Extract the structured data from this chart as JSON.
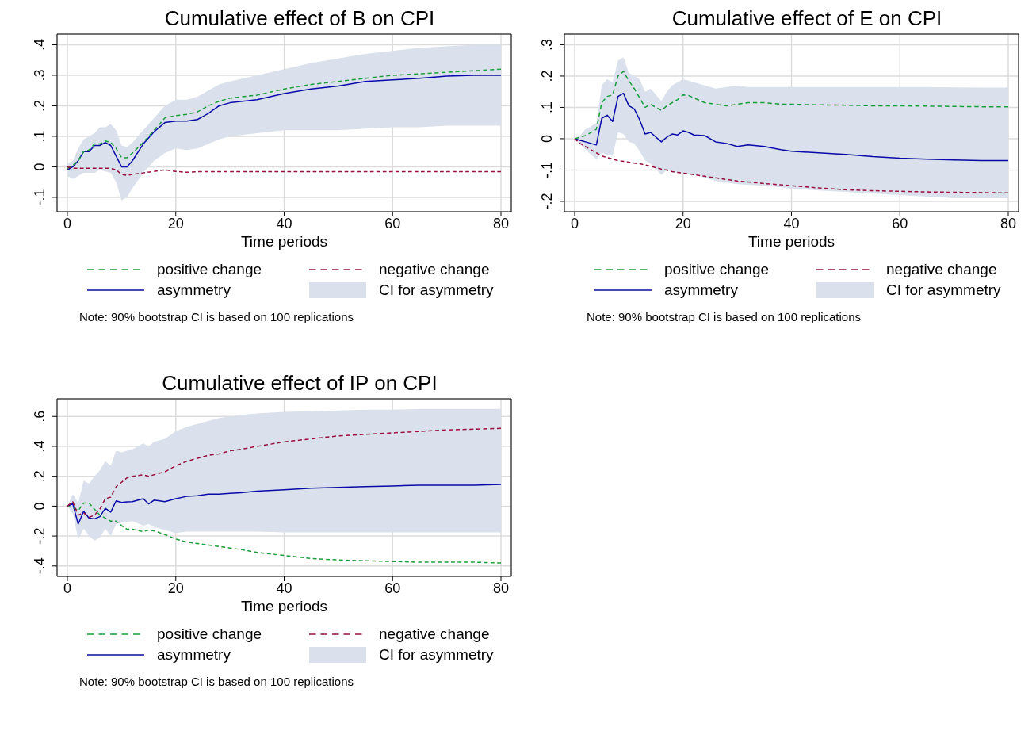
{
  "chart_data": [
    {
      "type": "line",
      "title": "Cumulative effect of B on CPI",
      "xlabel": "Time periods",
      "grid": true,
      "legend": "bottom",
      "annotations": [
        "Note: 90% bootstrap CI is based on 100 replications"
      ],
      "x": [
        0,
        1,
        2,
        3,
        4,
        5,
        6,
        7,
        8,
        9,
        10,
        11,
        12,
        14,
        16,
        18,
        20,
        22,
        24,
        26,
        28,
        30,
        35,
        40,
        45,
        50,
        55,
        60,
        65,
        70,
        75,
        80
      ],
      "xlim": [
        -1.9,
        81.9
      ],
      "xticks": [
        0,
        20,
        40,
        60,
        80
      ],
      "ylim": [
        -0.147,
        0.435
      ],
      "yticks": [
        {
          "value": -0.1,
          "label": "-.1"
        },
        {
          "value": 0,
          "label": "0"
        },
        {
          "value": 0.1,
          "label": ".1"
        },
        {
          "value": 0.2,
          "label": ".2"
        },
        {
          "value": 0.3,
          "label": ".3"
        },
        {
          "value": 0.4,
          "label": ".4"
        }
      ],
      "series": [
        {
          "name": "positive change",
          "type": "line",
          "line_style": "dashed",
          "color": "#1a9e3a",
          "values": [
            -0.005,
            0.005,
            0.02,
            0.05,
            0.055,
            0.075,
            0.075,
            0.085,
            0.08,
            0.06,
            0.03,
            0.03,
            0.045,
            0.08,
            0.12,
            0.16,
            0.168,
            0.172,
            0.18,
            0.2,
            0.215,
            0.225,
            0.235,
            0.255,
            0.27,
            0.28,
            0.29,
            0.3,
            0.305,
            0.31,
            0.315,
            0.32
          ]
        },
        {
          "name": "negative change",
          "type": "line",
          "line_style": "dashed",
          "color": "#99103f",
          "values": [
            0,
            -0.005,
            -0.005,
            -0.005,
            -0.005,
            -0.005,
            -0.005,
            -0.005,
            -0.005,
            -0.01,
            -0.025,
            -0.028,
            -0.025,
            -0.02,
            -0.015,
            -0.01,
            -0.015,
            -0.018,
            -0.016,
            -0.016,
            -0.016,
            -0.016,
            -0.016,
            -0.016,
            -0.016,
            -0.016,
            -0.016,
            -0.016,
            -0.016,
            -0.016,
            -0.016,
            -0.016
          ]
        },
        {
          "name": "asymmetry",
          "type": "line",
          "line_style": "solid",
          "color": "#0a0aa8",
          "values": [
            -0.01,
            0,
            0.02,
            0.05,
            0.05,
            0.07,
            0.07,
            0.08,
            0.07,
            0.035,
            0,
            0,
            0.02,
            0.075,
            0.115,
            0.145,
            0.15,
            0.15,
            0.155,
            0.175,
            0.2,
            0.21,
            0.22,
            0.24,
            0.255,
            0.265,
            0.28,
            0.285,
            0.29,
            0.297,
            0.3,
            0.3
          ],
          "lower": [
            -0.03,
            -0.04,
            -0.03,
            -0.02,
            -0.02,
            -0.02,
            -0.01,
            -0.015,
            -0.02,
            -0.05,
            -0.11,
            -0.1,
            -0.07,
            -0.02,
            0.02,
            0.045,
            0.06,
            0.055,
            0.06,
            0.075,
            0.09,
            0.1,
            0.11,
            0.12,
            0.12,
            0.12,
            0.125,
            0.13,
            0.13,
            0.135,
            0.135,
            0.135
          ],
          "upper": [
            0.01,
            0.02,
            0.06,
            0.09,
            0.1,
            0.11,
            0.13,
            0.13,
            0.14,
            0.12,
            0.07,
            0.065,
            0.08,
            0.12,
            0.16,
            0.2,
            0.22,
            0.22,
            0.23,
            0.25,
            0.27,
            0.28,
            0.3,
            0.32,
            0.34,
            0.355,
            0.37,
            0.38,
            0.39,
            0.395,
            0.4,
            0.4
          ]
        },
        {
          "name": "CI for asymmetry",
          "type": "area",
          "color": "#dae1ec",
          "values": [
            null,
            null,
            null,
            null,
            null,
            null,
            null,
            null,
            null,
            null,
            null,
            null,
            null,
            null,
            null,
            null,
            null,
            null,
            null,
            null,
            null,
            null,
            null,
            null,
            null,
            null,
            null,
            null,
            null,
            null,
            null,
            null
          ]
        }
      ]
    },
    {
      "type": "line",
      "title": "Cumulative effect of E on CPI",
      "xlabel": "Time periods",
      "grid": true,
      "legend": "bottom",
      "annotations": [
        "Note: 90% bootstrap CI is based on 100 replications"
      ],
      "x": [
        0,
        1,
        2,
        3,
        4,
        5,
        6,
        7,
        8,
        9,
        10,
        11,
        12,
        13,
        14,
        16,
        17,
        18,
        19,
        20,
        21,
        22,
        24,
        26,
        28,
        30,
        32,
        35,
        38,
        40,
        45,
        50,
        55,
        60,
        65,
        70,
        75,
        80
      ],
      "xlim": [
        -1.9,
        81.9
      ],
      "xticks": [
        0,
        20,
        40,
        60,
        80
      ],
      "ylim": [
        -0.233,
        0.334
      ],
      "yticks": [
        {
          "value": -0.2,
          "label": "-.2"
        },
        {
          "value": -0.1,
          "label": "-.1"
        },
        {
          "value": 0,
          "label": "0"
        },
        {
          "value": 0.1,
          "label": ".1"
        },
        {
          "value": 0.2,
          "label": ".2"
        },
        {
          "value": 0.3,
          "label": ".3"
        }
      ],
      "series": [
        {
          "name": "positive change",
          "type": "line",
          "line_style": "dashed",
          "color": "#1a9e3a",
          "values": [
            0,
            0.005,
            0.01,
            0.02,
            0.03,
            0.115,
            0.135,
            0.14,
            0.2,
            0.215,
            0.185,
            0.16,
            0.13,
            0.1,
            0.11,
            0.09,
            0.105,
            0.115,
            0.125,
            0.14,
            0.138,
            0.13,
            0.115,
            0.11,
            0.105,
            0.11,
            0.115,
            0.115,
            0.11,
            0.11,
            0.108,
            0.107,
            0.105,
            0.105,
            0.104,
            0.103,
            0.102,
            0.102
          ]
        },
        {
          "name": "negative change",
          "type": "line",
          "line_style": "dashed",
          "color": "#99103f",
          "values": [
            0,
            -0.015,
            -0.025,
            -0.035,
            -0.045,
            -0.055,
            -0.06,
            -0.065,
            -0.07,
            -0.072,
            -0.075,
            -0.078,
            -0.08,
            -0.084,
            -0.088,
            -0.097,
            -0.1,
            -0.105,
            -0.108,
            -0.11,
            -0.112,
            -0.115,
            -0.12,
            -0.125,
            -0.13,
            -0.135,
            -0.138,
            -0.143,
            -0.147,
            -0.15,
            -0.157,
            -0.163,
            -0.166,
            -0.168,
            -0.17,
            -0.171,
            -0.172,
            -0.173
          ]
        },
        {
          "name": "asymmetry",
          "type": "line",
          "line_style": "solid",
          "color": "#0a0aa8",
          "values": [
            0,
            -0.005,
            -0.01,
            -0.015,
            -0.02,
            0.065,
            0.075,
            0.055,
            0.135,
            0.145,
            0.105,
            0.095,
            0.06,
            0.015,
            0.02,
            -0.01,
            0.005,
            0.015,
            0.012,
            0.025,
            0.02,
            0.012,
            0.01,
            -0.01,
            -0.015,
            -0.025,
            -0.02,
            -0.025,
            -0.035,
            -0.04,
            -0.045,
            -0.05,
            -0.057,
            -0.062,
            -0.065,
            -0.068,
            -0.07,
            -0.07
          ],
          "lower": [
            0,
            -0.015,
            -0.035,
            -0.05,
            -0.065,
            -0.045,
            -0.05,
            -0.055,
            0.02,
            0.015,
            -0.01,
            -0.015,
            -0.04,
            -0.07,
            -0.08,
            -0.115,
            -0.1,
            -0.105,
            -0.108,
            -0.11,
            -0.112,
            -0.115,
            -0.125,
            -0.135,
            -0.14,
            -0.145,
            -0.147,
            -0.15,
            -0.155,
            -0.16,
            -0.165,
            -0.17,
            -0.175,
            -0.18,
            -0.185,
            -0.19,
            -0.19,
            -0.19
          ],
          "upper": [
            0,
            0.01,
            0.03,
            0.04,
            0.05,
            0.17,
            0.19,
            0.18,
            0.25,
            0.26,
            0.21,
            0.2,
            0.19,
            0.15,
            0.16,
            0.12,
            0.15,
            0.17,
            0.18,
            0.19,
            0.185,
            0.18,
            0.17,
            0.16,
            0.165,
            0.17,
            0.165,
            0.165,
            0.165,
            0.165,
            0.165,
            0.165,
            0.165,
            0.165,
            0.165,
            0.164,
            0.163,
            0.163
          ]
        },
        {
          "name": "CI for asymmetry",
          "type": "area",
          "color": "#dae1ec",
          "values": [
            null,
            null,
            null,
            null,
            null,
            null,
            null,
            null,
            null,
            null,
            null,
            null,
            null,
            null,
            null,
            null,
            null,
            null,
            null,
            null,
            null,
            null,
            null,
            null,
            null,
            null,
            null,
            null,
            null,
            null,
            null,
            null,
            null,
            null,
            null,
            null,
            null,
            null
          ]
        }
      ]
    },
    {
      "type": "line",
      "title": "Cumulative effect of IP on CPI",
      "xlabel": "Time periods",
      "grid": true,
      "legend": "bottom",
      "annotations": [
        "Note: 90% bootstrap CI is based on 100 replications"
      ],
      "x": [
        0,
        1,
        2,
        3,
        4,
        5,
        6,
        7,
        8,
        9,
        10,
        11,
        12,
        14,
        15,
        16,
        18,
        20,
        22,
        24,
        26,
        28,
        30,
        32,
        35,
        40,
        45,
        50,
        55,
        60,
        65,
        70,
        75,
        80
      ],
      "xlim": [
        -1.9,
        81.9
      ],
      "xticks": [
        0,
        20,
        40,
        60,
        80
      ],
      "ylim": [
        -0.47,
        0.718
      ],
      "yticks": [
        {
          "value": -0.4,
          "label": "-.4"
        },
        {
          "value": -0.2,
          "label": "-.2"
        },
        {
          "value": 0,
          "label": "0"
        },
        {
          "value": 0.2,
          "label": ".2"
        },
        {
          "value": 0.4,
          "label": ".4"
        },
        {
          "value": 0.6,
          "label": ".6"
        }
      ],
      "series": [
        {
          "name": "positive change",
          "type": "line",
          "line_style": "dashed",
          "color": "#1a9e3a",
          "values": [
            0,
            -0.01,
            -0.03,
            0.02,
            0.02,
            -0.02,
            -0.06,
            -0.08,
            -0.1,
            -0.1,
            -0.13,
            -0.155,
            -0.155,
            -0.17,
            -0.16,
            -0.165,
            -0.19,
            -0.22,
            -0.24,
            -0.25,
            -0.26,
            -0.27,
            -0.28,
            -0.29,
            -0.31,
            -0.33,
            -0.35,
            -0.36,
            -0.365,
            -0.37,
            -0.375,
            -0.375,
            -0.375,
            -0.38
          ]
        },
        {
          "name": "negative change",
          "type": "line",
          "line_style": "dashed",
          "color": "#99103f",
          "values": [
            0,
            0.03,
            -0.06,
            -0.045,
            -0.075,
            -0.06,
            -0.02,
            0.05,
            0.06,
            0.13,
            0.16,
            0.19,
            0.2,
            0.21,
            0.2,
            0.21,
            0.23,
            0.27,
            0.3,
            0.32,
            0.34,
            0.35,
            0.37,
            0.38,
            0.4,
            0.43,
            0.45,
            0.47,
            0.48,
            0.49,
            0.5,
            0.51,
            0.515,
            0.52
          ]
        },
        {
          "name": "asymmetry",
          "type": "line",
          "line_style": "solid",
          "color": "#0a0aa8",
          "values": [
            0,
            0.015,
            -0.12,
            -0.035,
            -0.08,
            -0.085,
            -0.07,
            -0.015,
            -0.04,
            0.035,
            0.025,
            0.028,
            0.03,
            0.05,
            0.015,
            0.04,
            0.03,
            0.05,
            0.065,
            0.07,
            0.08,
            0.08,
            0.085,
            0.09,
            0.1,
            0.11,
            0.12,
            0.125,
            0.13,
            0.135,
            0.14,
            0.14,
            0.14,
            0.145
          ],
          "lower": [
            0,
            -0.05,
            -0.22,
            -0.15,
            -0.2,
            -0.23,
            -0.21,
            -0.15,
            -0.2,
            -0.12,
            -0.11,
            -0.105,
            -0.1,
            -0.13,
            -0.12,
            -0.14,
            -0.16,
            -0.18,
            -0.17,
            -0.17,
            -0.17,
            -0.17,
            -0.17,
            -0.17,
            -0.17,
            -0.175,
            -0.175,
            -0.175,
            -0.175,
            -0.175,
            -0.175,
            -0.175,
            -0.175,
            -0.175
          ],
          "upper": [
            0,
            0.08,
            0.02,
            0.17,
            0.15,
            0.2,
            0.24,
            0.3,
            0.27,
            0.37,
            0.36,
            0.37,
            0.38,
            0.42,
            0.4,
            0.43,
            0.45,
            0.5,
            0.53,
            0.55,
            0.57,
            0.59,
            0.6,
            0.61,
            0.62,
            0.63,
            0.635,
            0.64,
            0.645,
            0.645,
            0.65,
            0.65,
            0.65,
            0.65
          ]
        },
        {
          "name": "CI for asymmetry",
          "type": "area",
          "color": "#dae1ec",
          "values": [
            null,
            null,
            null,
            null,
            null,
            null,
            null,
            null,
            null,
            null,
            null,
            null,
            null,
            null,
            null,
            null,
            null,
            null,
            null,
            null,
            null,
            null,
            null,
            null,
            null,
            null,
            null,
            null,
            null,
            null,
            null,
            null,
            null,
            null
          ]
        }
      ]
    }
  ]
}
